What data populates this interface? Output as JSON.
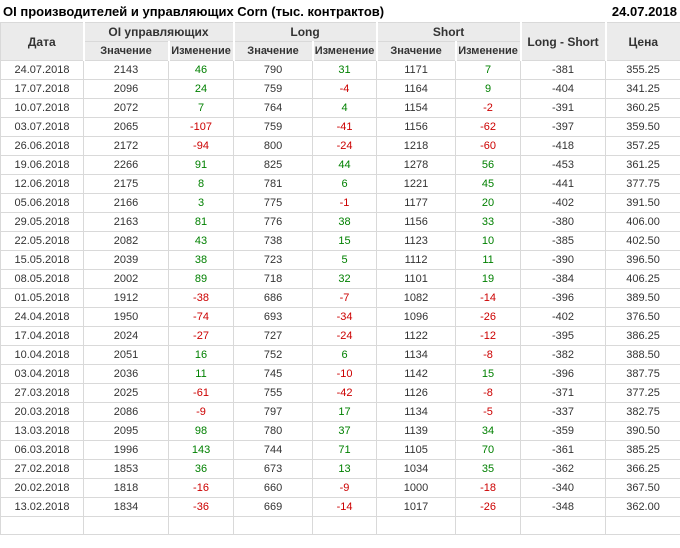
{
  "header": {
    "title": "OI производителей и управляющих Corn (тыс. контрактов)",
    "date": "24.07.2018"
  },
  "colors": {
    "positive": "#008000",
    "negative": "#cc0000",
    "text": "#333333",
    "header_bg": "#ebebeb",
    "border": "#d9d9d9"
  },
  "chart_data": {
    "type": "table",
    "title": "OI производителей и управляющих Corn (тыс. контрактов)",
    "report_date": "24.07.2018",
    "column_groups": [
      {
        "label": "Дата",
        "rowspan": 2
      },
      {
        "label": "OI управляющих",
        "children": [
          "Значение",
          "Изменение"
        ]
      },
      {
        "label": "Long",
        "children": [
          "Значение",
          "Изменение"
        ]
      },
      {
        "label": "Short",
        "children": [
          "Значение",
          "Изменение"
        ]
      },
      {
        "label": "Long - Short",
        "rowspan": 2
      },
      {
        "label": "Цена",
        "rowspan": 2
      }
    ],
    "flat_columns": [
      "Дата",
      "OI Значение",
      "OI Изменение",
      "Long Значение",
      "Long Изменение",
      "Short Значение",
      "Short Изменение",
      "Long - Short",
      "Цена"
    ],
    "change_column_indexes": [
      2,
      4,
      6
    ],
    "rows": [
      [
        "24.07.2018",
        "2143",
        "46",
        "790",
        "31",
        "1171",
        "7",
        "-381",
        "355.25"
      ],
      [
        "17.07.2018",
        "2096",
        "24",
        "759",
        "-4",
        "1164",
        "9",
        "-404",
        "341.25"
      ],
      [
        "10.07.2018",
        "2072",
        "7",
        "764",
        "4",
        "1154",
        "-2",
        "-391",
        "360.25"
      ],
      [
        "03.07.2018",
        "2065",
        "-107",
        "759",
        "-41",
        "1156",
        "-62",
        "-397",
        "359.50"
      ],
      [
        "26.06.2018",
        "2172",
        "-94",
        "800",
        "-24",
        "1218",
        "-60",
        "-418",
        "357.25"
      ],
      [
        "19.06.2018",
        "2266",
        "91",
        "825",
        "44",
        "1278",
        "56",
        "-453",
        "361.25"
      ],
      [
        "12.06.2018",
        "2175",
        "8",
        "781",
        "6",
        "1221",
        "45",
        "-441",
        "377.75"
      ],
      [
        "05.06.2018",
        "2166",
        "3",
        "775",
        "-1",
        "1177",
        "20",
        "-402",
        "391.50"
      ],
      [
        "29.05.2018",
        "2163",
        "81",
        "776",
        "38",
        "1156",
        "33",
        "-380",
        "406.00"
      ],
      [
        "22.05.2018",
        "2082",
        "43",
        "738",
        "15",
        "1123",
        "10",
        "-385",
        "402.50"
      ],
      [
        "15.05.2018",
        "2039",
        "38",
        "723",
        "5",
        "1112",
        "11",
        "-390",
        "396.50"
      ],
      [
        "08.05.2018",
        "2002",
        "89",
        "718",
        "32",
        "1101",
        "19",
        "-384",
        "406.25"
      ],
      [
        "01.05.2018",
        "1912",
        "-38",
        "686",
        "-7",
        "1082",
        "-14",
        "-396",
        "389.50"
      ],
      [
        "24.04.2018",
        "1950",
        "-74",
        "693",
        "-34",
        "1096",
        "-26",
        "-402",
        "376.50"
      ],
      [
        "17.04.2018",
        "2024",
        "-27",
        "727",
        "-24",
        "1122",
        "-12",
        "-395",
        "386.25"
      ],
      [
        "10.04.2018",
        "2051",
        "16",
        "752",
        "6",
        "1134",
        "-8",
        "-382",
        "388.50"
      ],
      [
        "03.04.2018",
        "2036",
        "11",
        "745",
        "-10",
        "1142",
        "15",
        "-396",
        "387.75"
      ],
      [
        "27.03.2018",
        "2025",
        "-61",
        "755",
        "-42",
        "1126",
        "-8",
        "-371",
        "377.25"
      ],
      [
        "20.03.2018",
        "2086",
        "-9",
        "797",
        "17",
        "1134",
        "-5",
        "-337",
        "382.75"
      ],
      [
        "13.03.2018",
        "2095",
        "98",
        "780",
        "37",
        "1139",
        "34",
        "-359",
        "390.50"
      ],
      [
        "06.03.2018",
        "1996",
        "143",
        "744",
        "71",
        "1105",
        "70",
        "-361",
        "385.25"
      ],
      [
        "27.02.2018",
        "1853",
        "36",
        "673",
        "13",
        "1034",
        "35",
        "-362",
        "366.25"
      ],
      [
        "20.02.2018",
        "1818",
        "-16",
        "660",
        "-9",
        "1000",
        "-18",
        "-340",
        "367.50"
      ],
      [
        "13.02.2018",
        "1834",
        "-36",
        "669",
        "-14",
        "1017",
        "-26",
        "-348",
        "362.00"
      ]
    ]
  }
}
